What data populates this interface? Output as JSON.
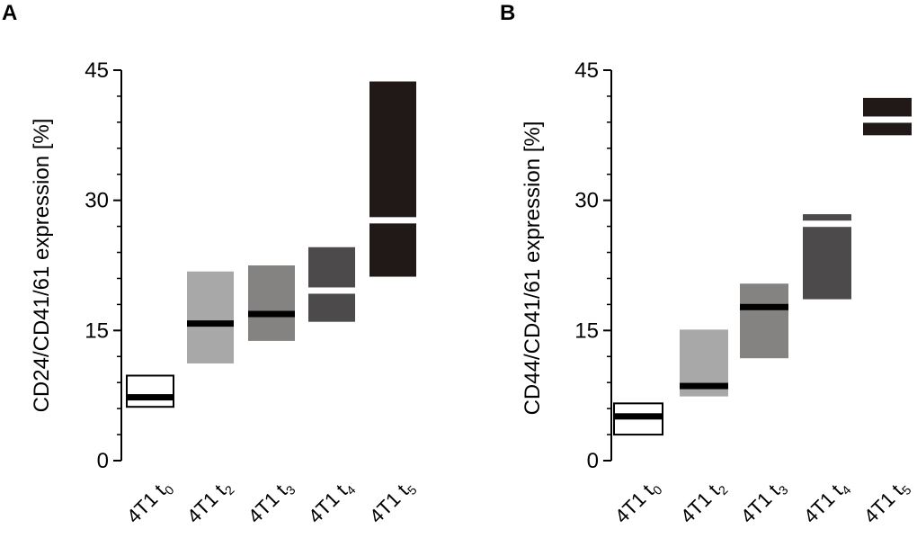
{
  "chart_data": [
    {
      "panel": "A",
      "type": "box",
      "ylabel": "CD24/CD41/61 expression [%]",
      "xlabel": "",
      "ylim": [
        0,
        45
      ],
      "yticks": [
        0,
        15,
        30,
        45
      ],
      "boxes": [
        {
          "label_main": "4T1 t",
          "label_sub": "0",
          "low": 6.2,
          "high": 9.8,
          "median": 7.3,
          "fill": "#ffffff",
          "median_color": "#000000"
        },
        {
          "label_main": "4T1 t",
          "label_sub": "2",
          "low": 11.2,
          "high": 21.8,
          "median": 15.8,
          "fill": "#a8a8a8",
          "median_color": "#000000"
        },
        {
          "label_main": "4T1 t",
          "label_sub": "3",
          "low": 13.8,
          "high": 22.5,
          "median": 16.9,
          "fill": "#858381",
          "median_color": "#000000"
        },
        {
          "label_main": "4T1 t",
          "label_sub": "4",
          "low": 16.0,
          "high": 24.6,
          "median": 19.6,
          "fill": "#4c4a4a",
          "median_color": "#ffffff"
        },
        {
          "label_main": "4T1 t",
          "label_sub": "5",
          "low": 21.2,
          "high": 43.7,
          "median": 27.7,
          "fill": "#201918",
          "median_color": "#ffffff"
        }
      ]
    },
    {
      "panel": "B",
      "type": "box",
      "ylabel": "CD44/CD41/61 expression [%]",
      "xlabel": "",
      "ylim": [
        0,
        45
      ],
      "yticks": [
        0,
        15,
        30,
        45
      ],
      "boxes": [
        {
          "label_main": "4T1 t",
          "label_sub": "0",
          "low": 3.0,
          "high": 6.6,
          "median": 5.1,
          "fill": "#ffffff",
          "median_color": "#000000"
        },
        {
          "label_main": "4T1 t",
          "label_sub": "2",
          "low": 7.4,
          "high": 15.1,
          "median": 8.6,
          "fill": "#a8a8a8",
          "median_color": "#000000"
        },
        {
          "label_main": "4T1 t",
          "label_sub": "3",
          "low": 11.8,
          "high": 20.4,
          "median": 17.7,
          "fill": "#858381",
          "median_color": "#000000"
        },
        {
          "label_main": "4T1 t",
          "label_sub": "4",
          "low": 18.6,
          "high": 28.4,
          "median": 27.3,
          "fill": "#4c4a4a",
          "median_color": "#ffffff"
        },
        {
          "label_main": "4T1 t",
          "label_sub": "5",
          "low": 37.5,
          "high": 41.8,
          "median": 39.3,
          "fill": "#201918",
          "median_color": "#ffffff"
        }
      ]
    }
  ]
}
